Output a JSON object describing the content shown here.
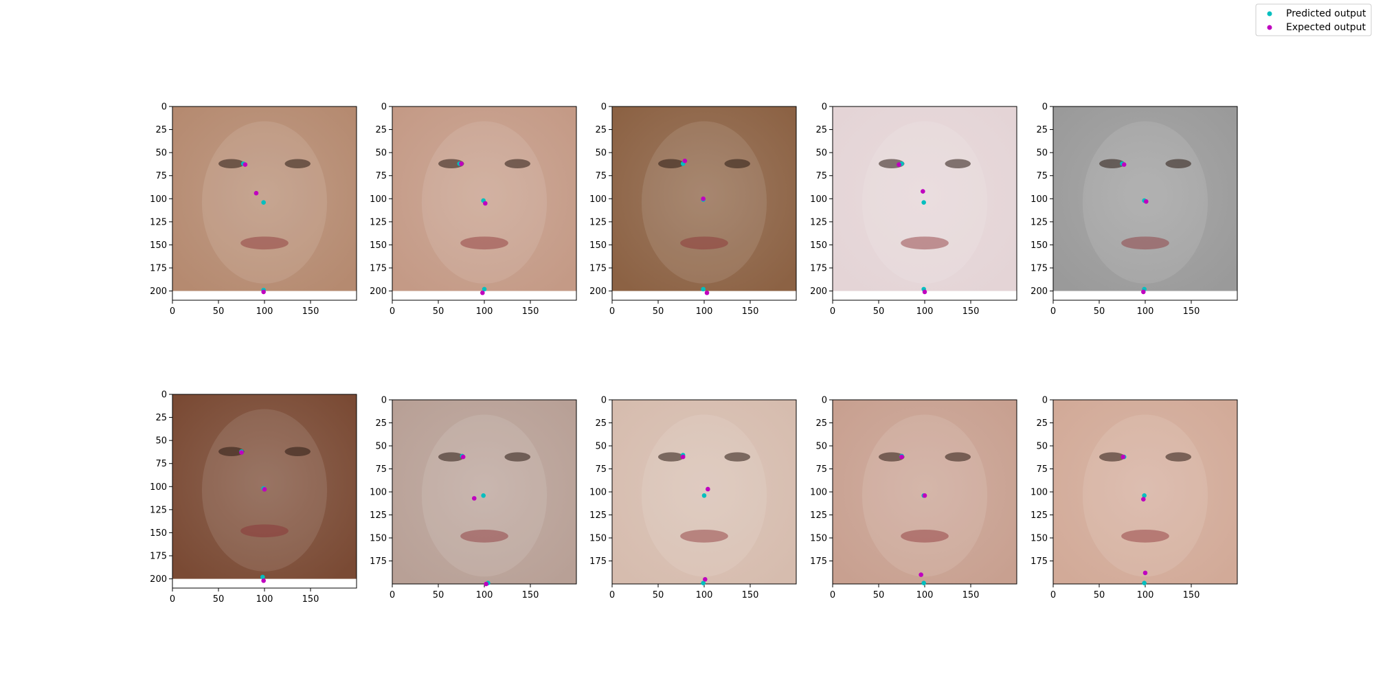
{
  "colors": {
    "predicted": "#00bfbf",
    "expected": "#bf00bf",
    "axis": "#000000",
    "legend_border": "#cccccc"
  },
  "legend": {
    "placement": "top-right",
    "predicted_label": "Predicted output",
    "expected_label": "Expected output"
  },
  "chart_data": [
    {
      "type": "scatter",
      "xlim": [
        0,
        200
      ],
      "ylim": [
        210,
        0
      ],
      "x_ticks": [
        0,
        50,
        100,
        150
      ],
      "y_ticks": [
        0,
        25,
        50,
        75,
        100,
        125,
        150,
        175,
        200
      ],
      "image_size": [
        200,
        200
      ],
      "image_tone": "#b58a70",
      "series": [
        {
          "name": "Predicted output",
          "x": [
            77,
            99,
            99
          ],
          "y": [
            62,
            104,
            199
          ]
        },
        {
          "name": "Expected output",
          "x": [
            79,
            91,
            99
          ],
          "y": [
            63,
            94,
            201
          ]
        }
      ]
    },
    {
      "type": "scatter",
      "xlim": [
        0,
        200
      ],
      "ylim": [
        210,
        0
      ],
      "x_ticks": [
        0,
        50,
        100,
        150
      ],
      "y_ticks": [
        0,
        25,
        50,
        75,
        100,
        125,
        150,
        175,
        200
      ],
      "image_size": [
        200,
        200
      ],
      "image_tone": "#c49a86",
      "series": [
        {
          "name": "Predicted output",
          "x": [
            73,
            99,
            100
          ],
          "y": [
            62,
            102,
            198
          ]
        },
        {
          "name": "Expected output",
          "x": [
            75,
            101,
            98
          ],
          "y": [
            62,
            105,
            202
          ]
        }
      ]
    },
    {
      "type": "scatter",
      "xlim": [
        0,
        200
      ],
      "ylim": [
        210,
        0
      ],
      "x_ticks": [
        0,
        50,
        100,
        150
      ],
      "y_ticks": [
        0,
        25,
        50,
        75,
        100,
        125,
        150,
        175,
        200
      ],
      "image_size": [
        200,
        200
      ],
      "image_tone": "#8c6244",
      "series": [
        {
          "name": "Predicted output",
          "x": [
            77,
            99,
            99
          ],
          "y": [
            62,
            101,
            198
          ]
        },
        {
          "name": "Expected output",
          "x": [
            79,
            99,
            103
          ],
          "y": [
            59,
            100,
            202
          ]
        }
      ]
    },
    {
      "type": "scatter",
      "xlim": [
        0,
        200
      ],
      "ylim": [
        210,
        0
      ],
      "x_ticks": [
        0,
        50,
        100,
        150
      ],
      "y_ticks": [
        0,
        25,
        50,
        75,
        100,
        125,
        150,
        175,
        200
      ],
      "image_size": [
        200,
        200
      ],
      "image_tone": "#e4d4d6",
      "series": [
        {
          "name": "Predicted output",
          "x": [
            75,
            99,
            99
          ],
          "y": [
            62,
            104,
            198
          ]
        },
        {
          "name": "Expected output",
          "x": [
            72,
            98,
            100
          ],
          "y": [
            63,
            92,
            201
          ]
        }
      ]
    },
    {
      "type": "scatter",
      "xlim": [
        0,
        200
      ],
      "ylim": [
        210,
        0
      ],
      "x_ticks": [
        0,
        50,
        100,
        150
      ],
      "y_ticks": [
        0,
        25,
        50,
        75,
        100,
        125,
        150,
        175,
        200
      ],
      "image_size": [
        200,
        200
      ],
      "image_tone": "#9a9a9a",
      "series": [
        {
          "name": "Predicted output",
          "x": [
            75,
            99,
            99
          ],
          "y": [
            62,
            102,
            198
          ]
        },
        {
          "name": "Expected output",
          "x": [
            77,
            101,
            98
          ],
          "y": [
            63,
            103,
            201
          ]
        }
      ]
    },
    {
      "type": "scatter",
      "xlim": [
        0,
        200
      ],
      "ylim": [
        210,
        0
      ],
      "x_ticks": [
        0,
        50,
        100,
        150
      ],
      "y_ticks": [
        0,
        25,
        50,
        75,
        100,
        125,
        150,
        175,
        200
      ],
      "image_size": [
        200,
        200
      ],
      "image_tone": "#7a4a34",
      "series": [
        {
          "name": "Predicted output",
          "x": [
            75,
            99,
            98
          ],
          "y": [
            62,
            102,
            198
          ]
        },
        {
          "name": "Expected output",
          "x": [
            75,
            100,
            99
          ],
          "y": [
            63,
            103,
            202
          ]
        }
      ]
    },
    {
      "type": "scatter",
      "xlim": [
        0,
        200
      ],
      "ylim": [
        200,
        0
      ],
      "x_ticks": [
        0,
        50,
        100,
        150
      ],
      "y_ticks": [
        0,
        25,
        50,
        75,
        100,
        125,
        150,
        175
      ],
      "image_size": [
        200,
        200
      ],
      "image_tone": "#b8a096",
      "series": [
        {
          "name": "Predicted output",
          "x": [
            76,
            99,
            104
          ],
          "y": [
            61,
            104,
            199
          ]
        },
        {
          "name": "Expected output",
          "x": [
            77,
            89,
            102
          ],
          "y": [
            62,
            107,
            200
          ]
        }
      ]
    },
    {
      "type": "scatter",
      "xlim": [
        0,
        200
      ],
      "ylim": [
        200,
        0
      ],
      "x_ticks": [
        0,
        50,
        100,
        150
      ],
      "y_ticks": [
        0,
        25,
        50,
        75,
        100,
        125,
        150,
        175
      ],
      "image_size": [
        200,
        200
      ],
      "image_tone": "#d6bcae",
      "series": [
        {
          "name": "Predicted output",
          "x": [
            77,
            100,
            99
          ],
          "y": [
            60,
            104,
            199
          ]
        },
        {
          "name": "Expected output",
          "x": [
            77,
            104,
            101
          ],
          "y": [
            62,
            97,
            195
          ]
        }
      ]
    },
    {
      "type": "scatter",
      "xlim": [
        0,
        200
      ],
      "ylim": [
        200,
        0
      ],
      "x_ticks": [
        0,
        50,
        100,
        150
      ],
      "y_ticks": [
        0,
        25,
        50,
        75,
        100,
        125,
        150,
        175
      ],
      "image_size": [
        200,
        200
      ],
      "image_tone": "#c8a090",
      "series": [
        {
          "name": "Predicted output",
          "x": [
            75,
            99,
            99
          ],
          "y": [
            61,
            104,
            199
          ]
        },
        {
          "name": "Expected output",
          "x": [
            75,
            100,
            96
          ],
          "y": [
            62,
            104,
            190
          ]
        }
      ]
    },
    {
      "type": "scatter",
      "xlim": [
        0,
        200
      ],
      "ylim": [
        200,
        0
      ],
      "x_ticks": [
        0,
        50,
        100,
        150
      ],
      "y_ticks": [
        0,
        25,
        50,
        75,
        100,
        125,
        150,
        175
      ],
      "image_size": [
        200,
        200
      ],
      "image_tone": "#d2aa98",
      "series": [
        {
          "name": "Predicted output",
          "x": [
            77,
            99,
            99
          ],
          "y": [
            62,
            104,
            199
          ]
        },
        {
          "name": "Expected output",
          "x": [
            76,
            98,
            100
          ],
          "y": [
            62,
            108,
            188
          ]
        }
      ]
    }
  ]
}
